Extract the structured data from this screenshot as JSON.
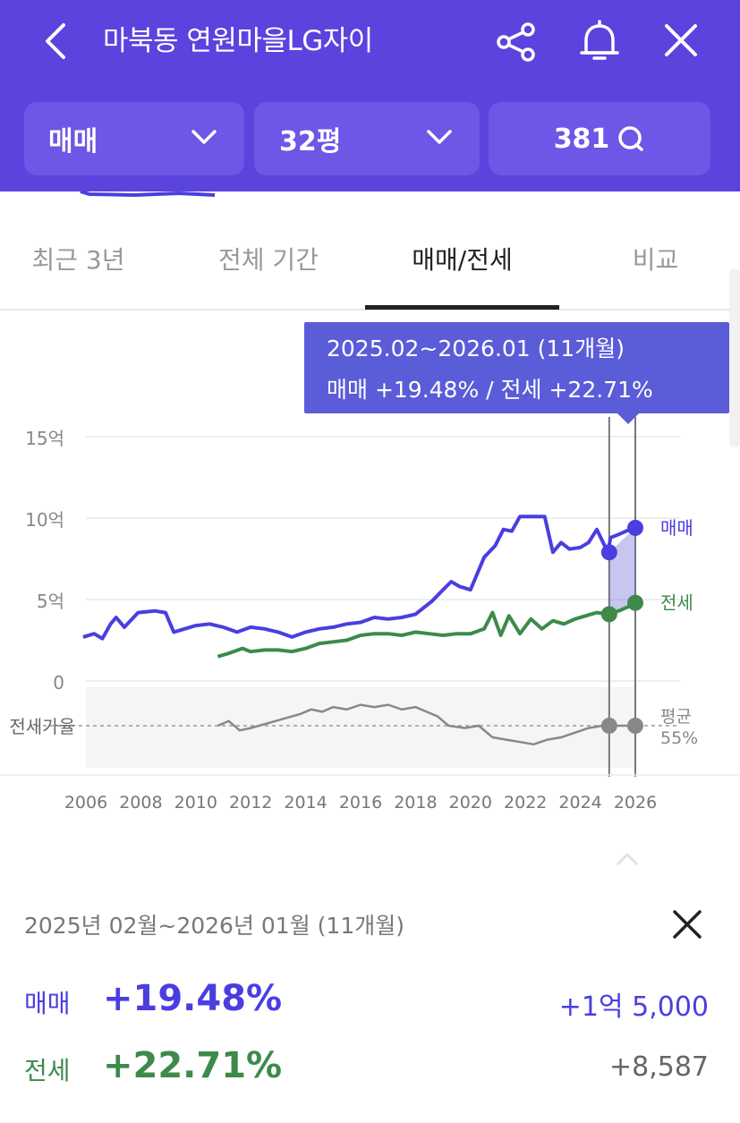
{
  "header": {
    "title": "마북동 연원마을LG자이",
    "icons": [
      "back-icon",
      "share-icon",
      "bell-icon",
      "close-icon"
    ]
  },
  "filters": {
    "trade_type": "매매",
    "area": "32평",
    "comments": "381"
  },
  "tabs": [
    {
      "label": "최근 3년",
      "active": false
    },
    {
      "label": "전체 기간",
      "active": false
    },
    {
      "label": "매매/전세",
      "active": true
    },
    {
      "label": "비교",
      "active": false
    }
  ],
  "tooltip": {
    "range": "2025.02~2026.01 (11개월)",
    "summary": "매매 +19.48%  /  전세 +22.71%"
  },
  "chart_data": {
    "type": "line",
    "x_ticks": [
      "2006",
      "2008",
      "2010",
      "2012",
      "2014",
      "2016",
      "2018",
      "2020",
      "2022",
      "2024",
      "2026"
    ],
    "y_ticks": [
      "15억",
      "10억",
      "5억",
      "0"
    ],
    "ylim": [
      0,
      15
    ],
    "ratio_label": "전세가율",
    "ratio_avg_label": "평균",
    "ratio_avg_value": "55%",
    "series": [
      {
        "name": "매매",
        "color": "#4a3ee0",
        "x": [
          2005.9,
          2006.3,
          2006.6,
          2006.9,
          2007.1,
          2007.4,
          2007.9,
          2008.5,
          2008.9,
          2009.2,
          2010,
          2010.5,
          2011,
          2011.5,
          2012,
          2012.5,
          2013,
          2013.5,
          2014,
          2014.5,
          2015,
          2015.5,
          2016,
          2016.5,
          2017,
          2017.5,
          2018,
          2018.3,
          2018.6,
          2019,
          2019.3,
          2019.6,
          2020,
          2020.3,
          2020.5,
          2020.9,
          2021.2,
          2021.5,
          2021.8,
          2022.3,
          2022.7,
          2023,
          2023.3,
          2023.6,
          2024,
          2024.3,
          2024.6,
          2025.0,
          2025.1,
          2025.4,
          2025.8,
          2026.0
        ],
        "y": [
          2.7,
          2.9,
          2.6,
          3.5,
          3.9,
          3.3,
          4.2,
          4.3,
          4.2,
          3.0,
          3.4,
          3.5,
          3.3,
          3.0,
          3.3,
          3.2,
          3.0,
          2.7,
          3.0,
          3.2,
          3.3,
          3.5,
          3.6,
          3.9,
          3.8,
          3.9,
          4.1,
          4.5,
          4.9,
          5.6,
          6.1,
          5.8,
          5.6,
          6.8,
          7.6,
          8.3,
          9.3,
          9.2,
          10.1,
          10.1,
          10.1,
          7.9,
          8.5,
          8.1,
          8.2,
          8.5,
          9.3,
          7.9,
          8.8,
          9.0,
          9.3,
          9.4
        ]
      },
      {
        "name": "전세",
        "color": "#3d8a4b",
        "x": [
          2010.8,
          2011.2,
          2011.7,
          2012,
          2012.5,
          2013,
          2013.5,
          2014,
          2014.5,
          2015,
          2015.5,
          2016,
          2016.5,
          2017,
          2017.5,
          2018,
          2018.5,
          2019,
          2019.5,
          2020,
          2020.5,
          2020.8,
          2021.1,
          2021.4,
          2021.8,
          2022.2,
          2022.6,
          2023,
          2023.4,
          2023.8,
          2024.2,
          2024.6,
          2025.0,
          2025.4,
          2025.8,
          2026.0
        ],
        "y": [
          1.5,
          1.7,
          2.0,
          1.8,
          1.9,
          1.9,
          1.8,
          2.0,
          2.3,
          2.4,
          2.5,
          2.8,
          2.9,
          2.9,
          2.8,
          3.0,
          2.9,
          2.8,
          2.9,
          2.9,
          3.2,
          4.2,
          2.8,
          4.0,
          2.9,
          3.8,
          3.2,
          3.7,
          3.5,
          3.8,
          4.0,
          4.2,
          4.1,
          4.3,
          4.6,
          4.8
        ]
      },
      {
        "name": "전세가율",
        "color": "#888888",
        "x": [
          2010.8,
          2011.2,
          2011.6,
          2012,
          2012.6,
          2013.2,
          2013.8,
          2014.2,
          2014.6,
          2015,
          2015.5,
          2016,
          2016.5,
          2017,
          2017.5,
          2018,
          2018.4,
          2018.8,
          2019.2,
          2019.8,
          2020.3,
          2020.8,
          2021.3,
          2021.8,
          2022.3,
          2022.8,
          2023.3,
          2023.8,
          2024.3,
          2024.8,
          2025.0,
          2025.5,
          2026.0
        ],
        "y": [
          55,
          57,
          53,
          54,
          56,
          58,
          60,
          62,
          61,
          63,
          62,
          64,
          63,
          64,
          62,
          63,
          61,
          59,
          55,
          54,
          55,
          50,
          49,
          48,
          47,
          49,
          50,
          52,
          54,
          55,
          55,
          55,
          55
        ]
      }
    ]
  },
  "summary": {
    "period": "2025년 02월~2026년 01월 (11개월)",
    "rows": [
      {
        "label": "매매",
        "pct": "+19.48%",
        "amount": "+1억 5,000",
        "color": "#4a3ee0"
      },
      {
        "label": "전세",
        "pct": "+22.71%",
        "amount": "+8,587",
        "color": "#3d8a4b"
      }
    ]
  }
}
